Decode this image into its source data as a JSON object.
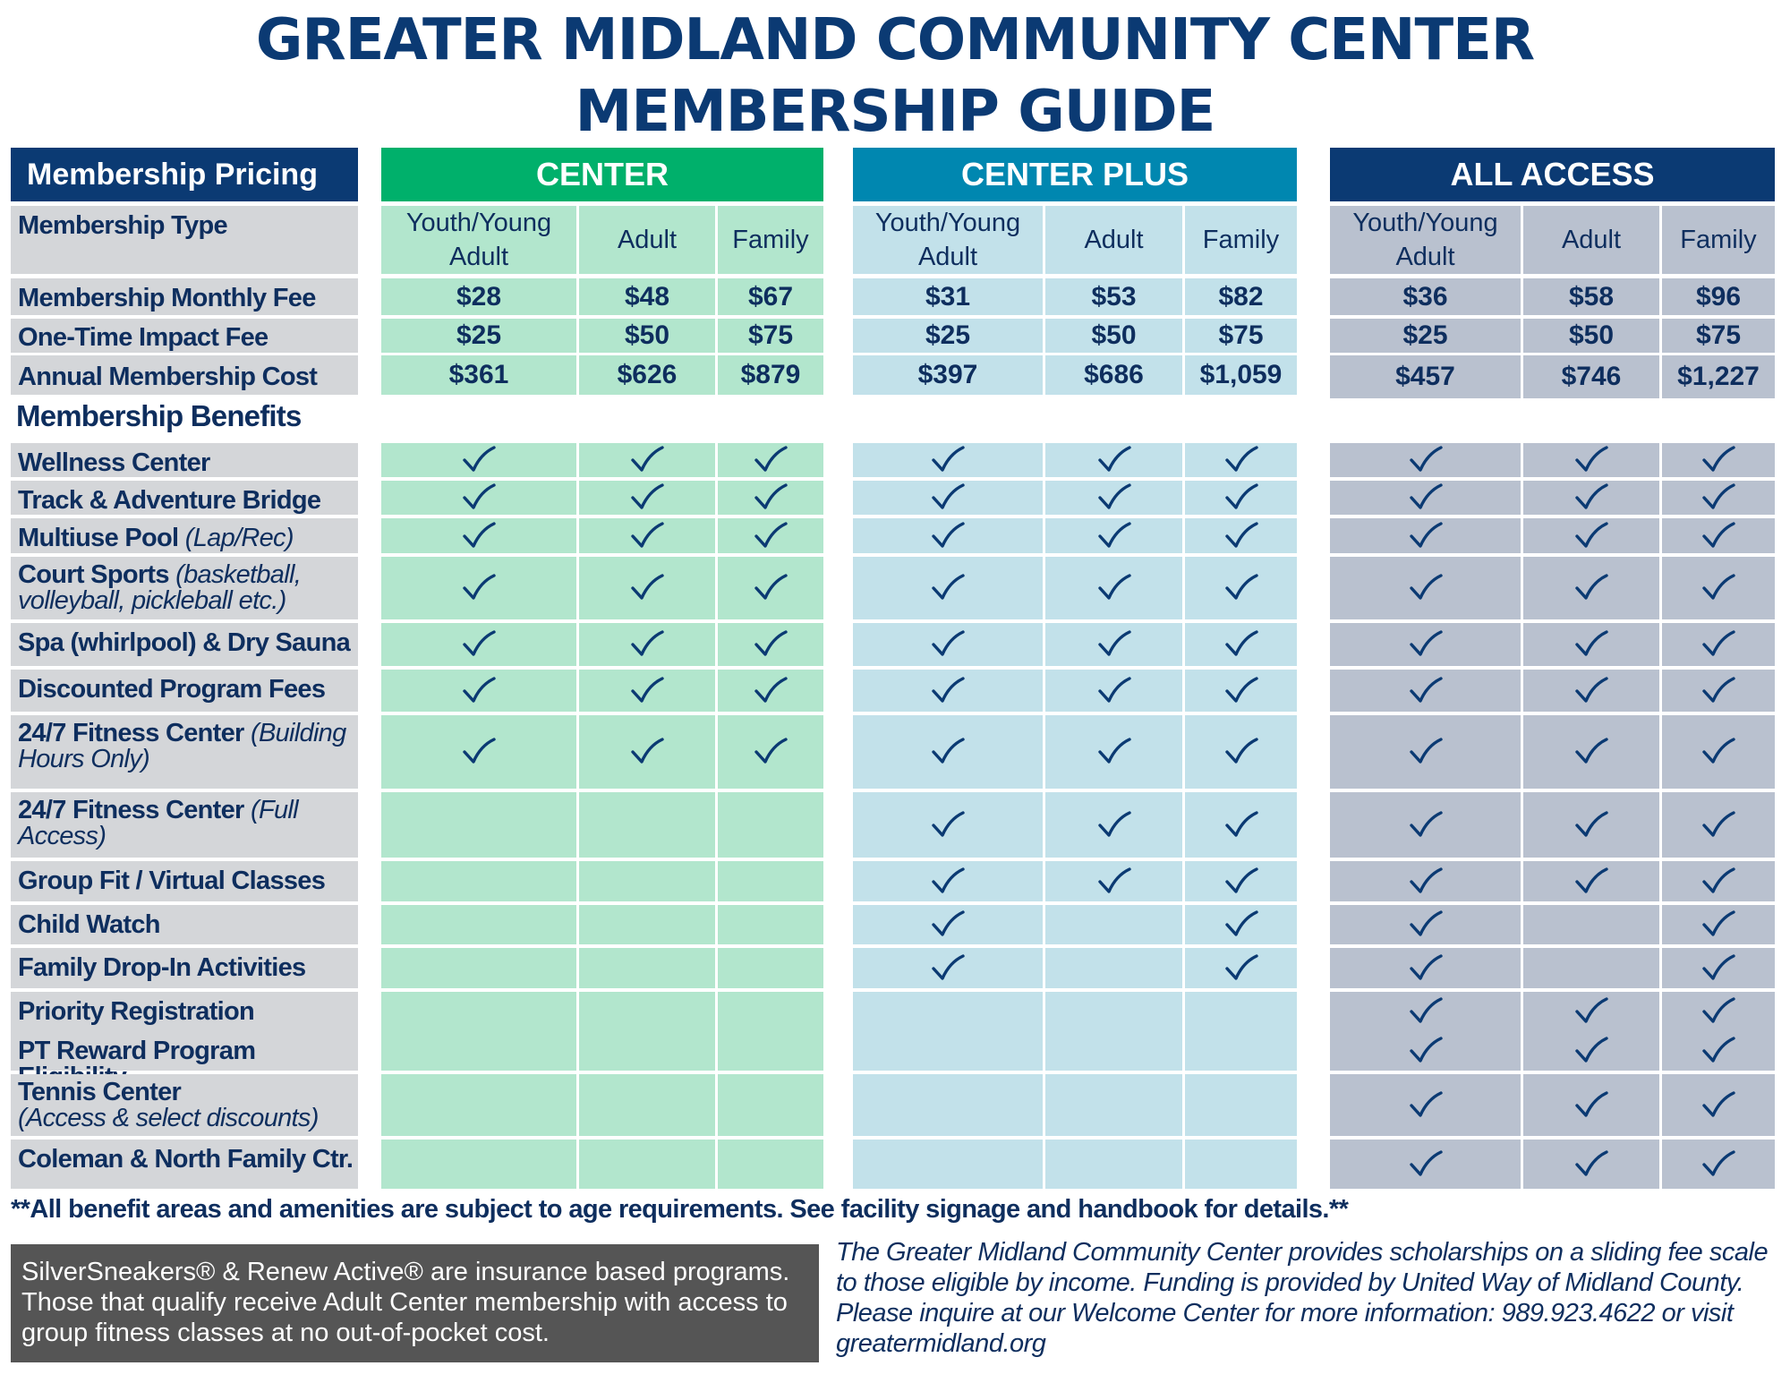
{
  "title": {
    "line1": "GREATER MIDLAND COMMUNITY CENTER",
    "line2": "MEMBERSHIP GUIDE"
  },
  "pricing_header": "Membership Pricing",
  "membership_type_label": "Membership Type",
  "benefits_header": "Membership Benefits",
  "tiers": [
    {
      "name": "CENTER",
      "color": "#00b06b",
      "cell_color": "#b2e6cd",
      "columns": [
        "Youth/Young Adult",
        "Adult",
        "Family"
      ]
    },
    {
      "name": "CENTER PLUS",
      "color": "#0087b0",
      "cell_color": "#c2e1ea",
      "columns": [
        "Youth/Young Adult",
        "Adult",
        "Family"
      ]
    },
    {
      "name": "ALL ACCESS",
      "color": "#0b3a73",
      "cell_color": "#b9c1cf",
      "columns": [
        "Youth/Young Adult",
        "Adult",
        "Family"
      ]
    }
  ],
  "price_rows": [
    {
      "label": "Membership Monthly Fee",
      "values": [
        "$28",
        "$48",
        "$67",
        "$31",
        "$53",
        "$82",
        "$36",
        "$58",
        "$96"
      ]
    },
    {
      "label": "One-Time Impact Fee",
      "values": [
        "$25",
        "$50",
        "$75",
        "$25",
        "$50",
        "$75",
        "$25",
        "$50",
        "$75"
      ]
    },
    {
      "label": "Annual Membership Cost",
      "values": [
        "$361",
        "$626",
        "$879",
        "$397",
        "$686",
        "$1,059",
        "$457",
        "$746",
        "$1,227"
      ]
    }
  ],
  "benefit_rows": [
    {
      "label": "Wellness Center",
      "label_italic": "",
      "checks": [
        1,
        1,
        1,
        1,
        1,
        1,
        1,
        1,
        1
      ]
    },
    {
      "label": "Track & Adventure Bridge",
      "label_italic": "",
      "checks": [
        1,
        1,
        1,
        1,
        1,
        1,
        1,
        1,
        1
      ]
    },
    {
      "label": "Multiuse Pool ",
      "label_italic": "(Lap/Rec)",
      "checks": [
        1,
        1,
        1,
        1,
        1,
        1,
        1,
        1,
        1
      ]
    },
    {
      "label": "Court Sports ",
      "label_italic": "(basketball, volleyball, pickleball etc.)",
      "checks": [
        1,
        1,
        1,
        1,
        1,
        1,
        1,
        1,
        1
      ]
    },
    {
      "label": "Spa (whirlpool) & Dry Sauna",
      "label_italic": "",
      "checks": [
        1,
        1,
        1,
        1,
        1,
        1,
        1,
        1,
        1
      ]
    },
    {
      "label": "Discounted Program Fees",
      "label_italic": "",
      "checks": [
        1,
        1,
        1,
        1,
        1,
        1,
        1,
        1,
        1
      ]
    },
    {
      "label": "24/7 Fitness Center ",
      "label_italic": "(Building Hours Only)",
      "checks": [
        1,
        1,
        1,
        1,
        1,
        1,
        1,
        1,
        1
      ]
    },
    {
      "label": "24/7 Fitness Center ",
      "label_italic": "(Full Access)",
      "checks": [
        0,
        0,
        0,
        1,
        1,
        1,
        1,
        1,
        1
      ]
    },
    {
      "label": "Group Fit / Virtual Classes",
      "label_italic": "",
      "checks": [
        0,
        0,
        0,
        1,
        1,
        1,
        1,
        1,
        1
      ]
    },
    {
      "label": "Child Watch",
      "label_italic": "",
      "checks": [
        0,
        0,
        0,
        1,
        0,
        1,
        1,
        0,
        1
      ]
    },
    {
      "label": "Family Drop-In Activities",
      "label_italic": "",
      "checks": [
        0,
        0,
        0,
        1,
        0,
        1,
        1,
        0,
        1
      ]
    },
    {
      "label": "Priority Registration",
      "label_italic": "",
      "checks": [
        0,
        0,
        0,
        0,
        0,
        0,
        1,
        1,
        1
      ]
    },
    {
      "label": "PT Reward Program Eligibility",
      "label_italic": "",
      "checks": [
        0,
        0,
        0,
        0,
        0,
        0,
        1,
        1,
        1
      ]
    },
    {
      "label": "Tennis Center",
      "label_italic": "(Access & select discounts)",
      "checks": [
        0,
        0,
        0,
        0,
        0,
        0,
        1,
        1,
        1
      ]
    },
    {
      "label": "Coleman & North Family Ctr.",
      "label_italic": "",
      "checks": [
        0,
        0,
        0,
        0,
        0,
        0,
        1,
        1,
        1
      ]
    }
  ],
  "footnote": "**All benefit areas and amenities are subject to age requirements. See facility signage and handbook for details.**",
  "silversneakers_note": "SilverSneakers® & Renew Active® are insurance based programs. Those that qualify receive Adult Center membership with access to group fitness classes at no out-of-pocket cost.",
  "scholarship_note": "The Greater Midland Community Center provides scholarships on a sliding fee scale to those eligible by income. Funding is provided by United Way of Midland County. Please inquire at our Welcome Center for more information: 989.923.4622 or visit greatermidland.org"
}
